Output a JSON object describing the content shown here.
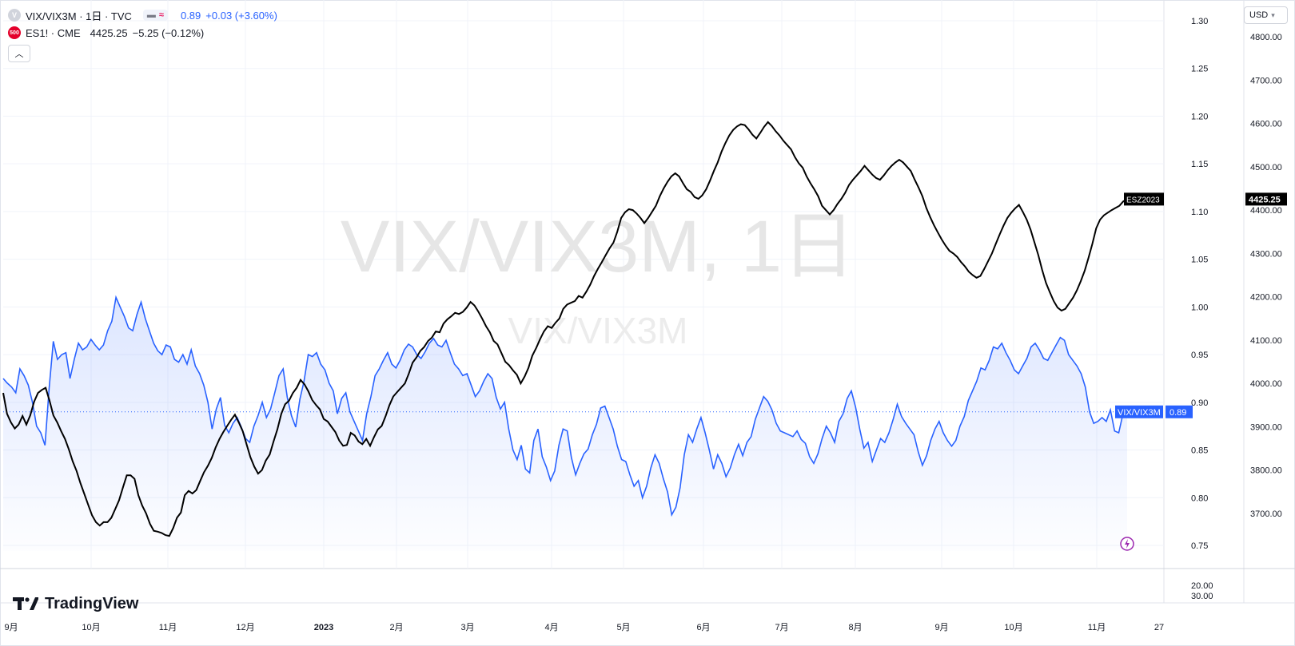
{
  "legend": {
    "main_symbol": "VIX/VIX3M · 1日 · TVC",
    "main_value": "0.89",
    "main_change": "+0.03 (+3.60%)",
    "compare_symbol": "ES1! · CME",
    "compare_value": "4425.25",
    "compare_change": "−5.25 (−0.12%)",
    "main_icon": "V",
    "compare_icon": "500",
    "collapse_icon": "chevron-up-icon"
  },
  "watermark": {
    "main": "VIX/VIX3M, 1日",
    "sub": "VIX/VIX3M"
  },
  "currency_button": "USD",
  "branding": {
    "name": "TradingView"
  },
  "colors": {
    "vix_line": "#2962ff",
    "es_line": "#000000",
    "grid": "#f0f3fa",
    "axis_text": "#131722"
  },
  "chart_data": {
    "type": "line",
    "x_labels": [
      "9月",
      "10月",
      "11月",
      "12月",
      "2023",
      "2月",
      "3月",
      "4月",
      "5月",
      "6月",
      "7月",
      "8月",
      "9月",
      "10月",
      "11月",
      "27"
    ],
    "left_axis_label": "",
    "right_axis_vix": {
      "ticks": [
        "1.30",
        "1.25",
        "1.20",
        "1.15",
        "1.10",
        "1.05",
        "1.00",
        "0.95",
        "0.90",
        "0.85",
        "0.80",
        "0.75"
      ],
      "range": [
        0.745,
        1.3
      ]
    },
    "right_axis_es": {
      "ticks": [
        "4800.00",
        "4700.00",
        "4600.00",
        "4500.00",
        "4400.00",
        "4300.00",
        "4200.00",
        "4100.00",
        "4000.00",
        "3900.00",
        "3800.00",
        "3700.00"
      ],
      "range": [
        3610,
        4800
      ]
    },
    "lower_pane_ticks": [
      "20.00",
      "30.00"
    ],
    "series": [
      {
        "name": "VIX/VIX3M",
        "axis": "vix",
        "last_label": "VIX/VIX3M",
        "last_value": "0.89",
        "values": [
          0.925,
          0.92,
          0.916,
          0.91,
          0.935,
          0.928,
          0.918,
          0.9,
          0.875,
          0.868,
          0.855,
          0.915,
          0.964,
          0.945,
          0.95,
          0.952,
          0.925,
          0.945,
          0.962,
          0.955,
          0.958,
          0.966,
          0.96,
          0.955,
          0.96,
          0.975,
          0.985,
          1.01,
          1.0,
          0.99,
          0.978,
          0.975,
          0.992,
          1.005,
          0.988,
          0.975,
          0.962,
          0.954,
          0.95,
          0.96,
          0.958,
          0.945,
          0.942,
          0.95,
          0.94,
          0.955,
          0.938,
          0.93,
          0.918,
          0.9,
          0.872,
          0.893,
          0.905,
          0.876,
          0.868,
          0.878,
          0.884,
          0.874,
          0.862,
          0.858,
          0.875,
          0.886,
          0.9,
          0.884,
          0.893,
          0.91,
          0.928,
          0.935,
          0.905,
          0.886,
          0.874,
          0.903,
          0.922,
          0.95,
          0.948,
          0.952,
          0.94,
          0.934,
          0.92,
          0.912,
          0.888,
          0.904,
          0.91,
          0.89,
          0.88,
          0.87,
          0.86,
          0.888,
          0.906,
          0.928,
          0.935,
          0.944,
          0.952,
          0.94,
          0.936,
          0.944,
          0.955,
          0.961,
          0.958,
          0.95,
          0.946,
          0.953,
          0.962,
          0.967,
          0.96,
          0.958,
          0.965,
          0.952,
          0.94,
          0.935,
          0.928,
          0.93,
          0.918,
          0.906,
          0.912,
          0.922,
          0.93,
          0.925,
          0.905,
          0.893,
          0.9,
          0.872,
          0.85,
          0.84,
          0.855,
          0.83,
          0.826,
          0.86,
          0.872,
          0.843,
          0.832,
          0.818,
          0.828,
          0.855,
          0.872,
          0.87,
          0.842,
          0.824,
          0.836,
          0.846,
          0.851,
          0.866,
          0.877,
          0.894,
          0.896,
          0.884,
          0.872,
          0.854,
          0.84,
          0.838,
          0.824,
          0.812,
          0.818,
          0.8,
          0.812,
          0.831,
          0.845,
          0.836,
          0.82,
          0.806,
          0.782,
          0.79,
          0.81,
          0.845,
          0.866,
          0.858,
          0.872,
          0.884,
          0.868,
          0.85,
          0.83,
          0.845,
          0.836,
          0.822,
          0.831,
          0.845,
          0.856,
          0.844,
          0.858,
          0.864,
          0.882,
          0.894,
          0.906,
          0.901,
          0.892,
          0.878,
          0.87,
          0.868,
          0.866,
          0.864,
          0.87,
          0.861,
          0.857,
          0.843,
          0.836,
          0.846,
          0.862,
          0.875,
          0.868,
          0.858,
          0.88,
          0.888,
          0.904,
          0.912,
          0.895,
          0.872,
          0.852,
          0.858,
          0.838,
          0.85,
          0.862,
          0.858,
          0.868,
          0.882,
          0.898,
          0.885,
          0.878,
          0.872,
          0.866,
          0.848,
          0.834,
          0.844,
          0.86,
          0.872,
          0.88,
          0.868,
          0.86,
          0.854,
          0.86,
          0.875,
          0.885,
          0.902,
          0.912,
          0.922,
          0.936,
          0.934,
          0.944,
          0.958,
          0.956,
          0.962,
          0.952,
          0.944,
          0.934,
          0.93,
          0.938,
          0.946,
          0.958,
          0.962,
          0.955,
          0.946,
          0.944,
          0.952,
          0.96,
          0.968,
          0.965,
          0.95,
          0.944,
          0.938,
          0.93,
          0.916,
          0.89,
          0.878,
          0.88,
          0.884,
          0.88,
          0.892,
          0.87,
          0.868,
          0.888,
          0.89
        ]
      },
      {
        "name": "ESZ2023",
        "axis": "es",
        "last_label": "ESZ2023",
        "last_value": "4425.25",
        "values": [
          3978,
          3930,
          3910,
          3896,
          3905,
          3925,
          3905,
          3926,
          3958,
          3978,
          3985,
          3990,
          3960,
          3926,
          3910,
          3890,
          3872,
          3848,
          3820,
          3798,
          3770,
          3745,
          3720,
          3696,
          3680,
          3672,
          3680,
          3680,
          3690,
          3710,
          3730,
          3760,
          3788,
          3788,
          3780,
          3742,
          3718,
          3700,
          3676,
          3660,
          3658,
          3655,
          3650,
          3648,
          3666,
          3690,
          3702,
          3742,
          3752,
          3746,
          3754,
          3775,
          3795,
          3810,
          3828,
          3852,
          3872,
          3888,
          3902,
          3916,
          3928,
          3910,
          3890,
          3860,
          3830,
          3808,
          3792,
          3800,
          3822,
          3836,
          3866,
          3894,
          3930,
          3952,
          3960,
          3978,
          3990,
          4008,
          3998,
          3982,
          3962,
          3950,
          3940,
          3918,
          3912,
          3900,
          3888,
          3868,
          3856,
          3858,
          3886,
          3880,
          3866,
          3860,
          3872,
          3856,
          3876,
          3894,
          3902,
          3924,
          3950,
          3970,
          3980,
          3990,
          4000,
          4022,
          4048,
          4060,
          4075,
          4084,
          4098,
          4106,
          4120,
          4118,
          4138,
          4148,
          4155,
          4163,
          4160,
          4165,
          4175,
          4188,
          4180,
          4166,
          4150,
          4132,
          4118,
          4098,
          4090,
          4070,
          4050,
          4042,
          4030,
          4020,
          4000,
          4016,
          4036,
          4064,
          4082,
          4102,
          4120,
          4132,
          4128,
          4140,
          4150,
          4172,
          4182,
          4186,
          4190,
          4202,
          4198,
          4212,
          4228,
          4248,
          4265,
          4280,
          4296,
          4312,
          4325,
          4350,
          4382,
          4395,
          4402,
          4400,
          4392,
          4382,
          4370,
          4382,
          4396,
          4410,
          4432,
          4450,
          4465,
          4478,
          4485,
          4478,
          4462,
          4448,
          4442,
          4430,
          4426,
          4434,
          4448,
          4468,
          4490,
          4510,
          4535,
          4555,
          4572,
          4585,
          4593,
          4598,
          4596,
          4586,
          4574,
          4565,
          4578,
          4592,
          4603,
          4594,
          4582,
          4572,
          4560,
          4550,
          4540,
          4522,
          4508,
          4498,
          4478,
          4462,
          4448,
          4432,
          4410,
          4400,
          4390,
          4400,
          4414,
          4426,
          4440,
          4458,
          4470,
          4480,
          4490,
          4502,
          4492,
          4482,
          4474,
          4470,
          4480,
          4492,
          4502,
          4510,
          4516,
          4510,
          4500,
          4490,
          4470,
          4452,
          4432,
          4405,
          4384,
          4365,
          4348,
          4332,
          4318,
          4306,
          4300,
          4292,
          4280,
          4270,
          4258,
          4250,
          4244,
          4248,
          4264,
          4282,
          4300,
          4322,
          4344,
          4364,
          4382,
          4394,
          4404,
          4412,
          4396,
          4378,
          4355,
          4326,
          4296,
          4262,
          4232,
          4210,
          4190,
          4175,
          4168,
          4172,
          4185,
          4198,
          4215,
          4236,
          4260,
          4290,
          4322,
          4358,
          4378,
          4388,
          4394,
          4400,
          4405,
          4410,
          4420,
          4425
        ]
      }
    ]
  }
}
